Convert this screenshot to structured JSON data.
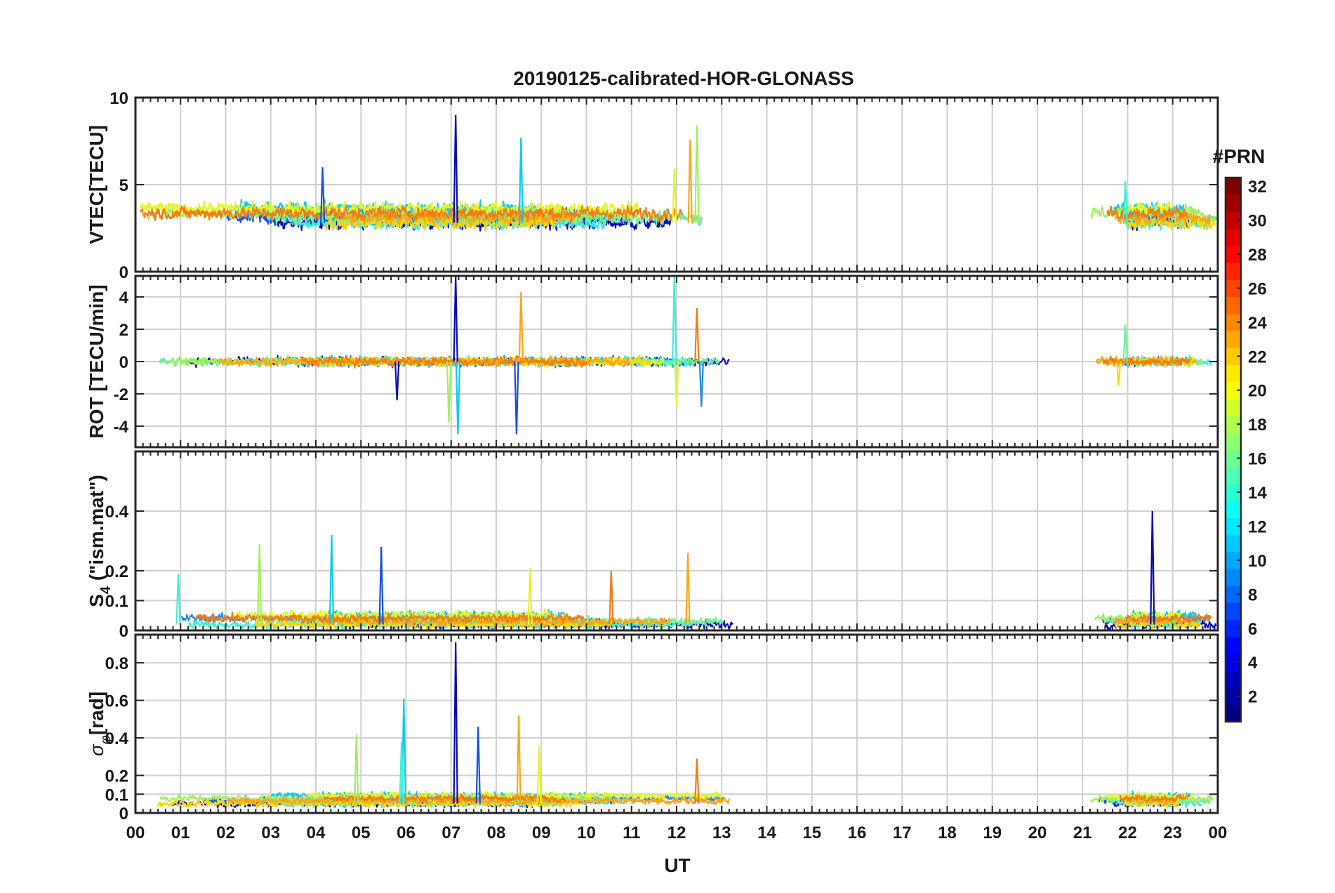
{
  "chart_data": {
    "type": "line",
    "title": "20190125-calibrated-HOR-GLONASS",
    "xlabel": "UT",
    "x_range": [
      0,
      24
    ],
    "x_tick_labels": [
      "00",
      "01",
      "02",
      "03",
      "04",
      "05",
      "06",
      "07",
      "08",
      "09",
      "10",
      "11",
      "12",
      "13",
      "14",
      "15",
      "16",
      "17",
      "18",
      "19",
      "20",
      "21",
      "22",
      "23",
      "00"
    ],
    "grid": true,
    "data_gaps": [
      [
        13.3,
        21.1
      ]
    ],
    "panels": [
      {
        "id": "vtec",
        "ylabel": "VTEC[TECU]",
        "ylim": [
          0,
          10
        ],
        "y_ticks": [
          0,
          5,
          10
        ],
        "y_tick_labels": [
          "0",
          "5",
          "10"
        ],
        "baseline": 2.8,
        "spread": 0.8,
        "peaks": [
          {
            "x": 7.1,
            "y": 9.0
          },
          {
            "x": 8.55,
            "y": 7.7
          },
          {
            "x": 12.45,
            "y": 8.4
          },
          {
            "x": 12.3,
            "y": 7.6
          },
          {
            "x": 4.15,
            "y": 6.0
          },
          {
            "x": 21.95,
            "y": 5.2
          },
          {
            "x": 11.95,
            "y": 5.9
          }
        ]
      },
      {
        "id": "rot",
        "ylabel": "ROT [TECU/min]",
        "ylim": [
          -5.3,
          5.3
        ],
        "y_ticks": [
          -4,
          -2,
          0,
          2,
          4
        ],
        "y_tick_labels": [
          "-4",
          "-2",
          "0",
          "2",
          "4"
        ],
        "baseline": 0,
        "spread": 0.35,
        "peaks": [
          {
            "x": 7.1,
            "y": 5.3
          },
          {
            "x": 7.15,
            "y": -4.5
          },
          {
            "x": 6.95,
            "y": -3.8
          },
          {
            "x": 8.55,
            "y": 4.3
          },
          {
            "x": 8.45,
            "y": -4.5
          },
          {
            "x": 11.95,
            "y": 5.3
          },
          {
            "x": 12.0,
            "y": -2.8
          },
          {
            "x": 12.45,
            "y": 3.3
          },
          {
            "x": 12.55,
            "y": -2.8
          },
          {
            "x": 21.95,
            "y": 2.3
          },
          {
            "x": 21.8,
            "y": -1.5
          },
          {
            "x": 5.8,
            "y": -2.4
          }
        ]
      },
      {
        "id": "s4",
        "ylabel": "S4 (\"ism.mat\")",
        "ylabel_main": "S",
        "ylabel_sub": "4",
        "ylabel_rest": " (\"ism.mat\")",
        "ylim": [
          0,
          0.6
        ],
        "y_ticks": [
          0,
          0.1,
          0.2,
          0.4
        ],
        "y_tick_labels": [
          "0",
          "0.1",
          "0.2",
          "0.4"
        ],
        "baseline": 0.02,
        "spread": 0.03,
        "peaks": [
          {
            "x": 22.55,
            "y": 0.4
          },
          {
            "x": 4.35,
            "y": 0.32
          },
          {
            "x": 2.75,
            "y": 0.29
          },
          {
            "x": 12.25,
            "y": 0.26
          },
          {
            "x": 5.45,
            "y": 0.28
          },
          {
            "x": 0.95,
            "y": 0.19
          },
          {
            "x": 8.75,
            "y": 0.21
          },
          {
            "x": 10.55,
            "y": 0.2
          }
        ]
      },
      {
        "id": "sigma_phi",
        "ylabel": "σφ[rad]",
        "ylabel_main": "σ",
        "ylabel_sub": "φ",
        "ylabel_rest": "[rad]",
        "ylim": [
          0,
          0.95
        ],
        "y_ticks": [
          0,
          0.1,
          0.2,
          0.4,
          0.6,
          0.8
        ],
        "y_tick_labels": [
          "0",
          "0.1",
          "0.2",
          "0.4",
          "0.6",
          "0.8"
        ],
        "baseline": 0.05,
        "spread": 0.04,
        "peaks": [
          {
            "x": 7.1,
            "y": 0.91
          },
          {
            "x": 5.95,
            "y": 0.61
          },
          {
            "x": 4.9,
            "y": 0.42
          },
          {
            "x": 8.5,
            "y": 0.52
          },
          {
            "x": 7.6,
            "y": 0.46
          },
          {
            "x": 5.9,
            "y": 0.38
          },
          {
            "x": 8.95,
            "y": 0.36
          },
          {
            "x": 12.45,
            "y": 0.29
          }
        ]
      }
    ],
    "series_groups": [
      {
        "prn": 2,
        "color": "#0a0ab8"
      },
      {
        "prn": 6,
        "color": "#1450e6"
      },
      {
        "prn": 9,
        "color": "#1e8ce6"
      },
      {
        "prn": 11,
        "color": "#14c8f0"
      },
      {
        "prn": 13,
        "color": "#3cf0dc"
      },
      {
        "prn": 15,
        "color": "#6ef096"
      },
      {
        "prn": 17,
        "color": "#a0f05a"
      },
      {
        "prn": 19,
        "color": "#e6f528"
      },
      {
        "prn": 21,
        "color": "#ffd700"
      },
      {
        "prn": 23,
        "color": "#ffa514"
      },
      {
        "prn": 24,
        "color": "#f07d14"
      }
    ],
    "colorbar": {
      "title": "#PRN",
      "range": [
        1,
        32
      ],
      "ticks": [
        "2",
        "4",
        "6",
        "8",
        "10",
        "12",
        "14",
        "16",
        "18",
        "20",
        "22",
        "24",
        "26",
        "28",
        "30",
        "32"
      ],
      "colormap": "jet"
    }
  }
}
